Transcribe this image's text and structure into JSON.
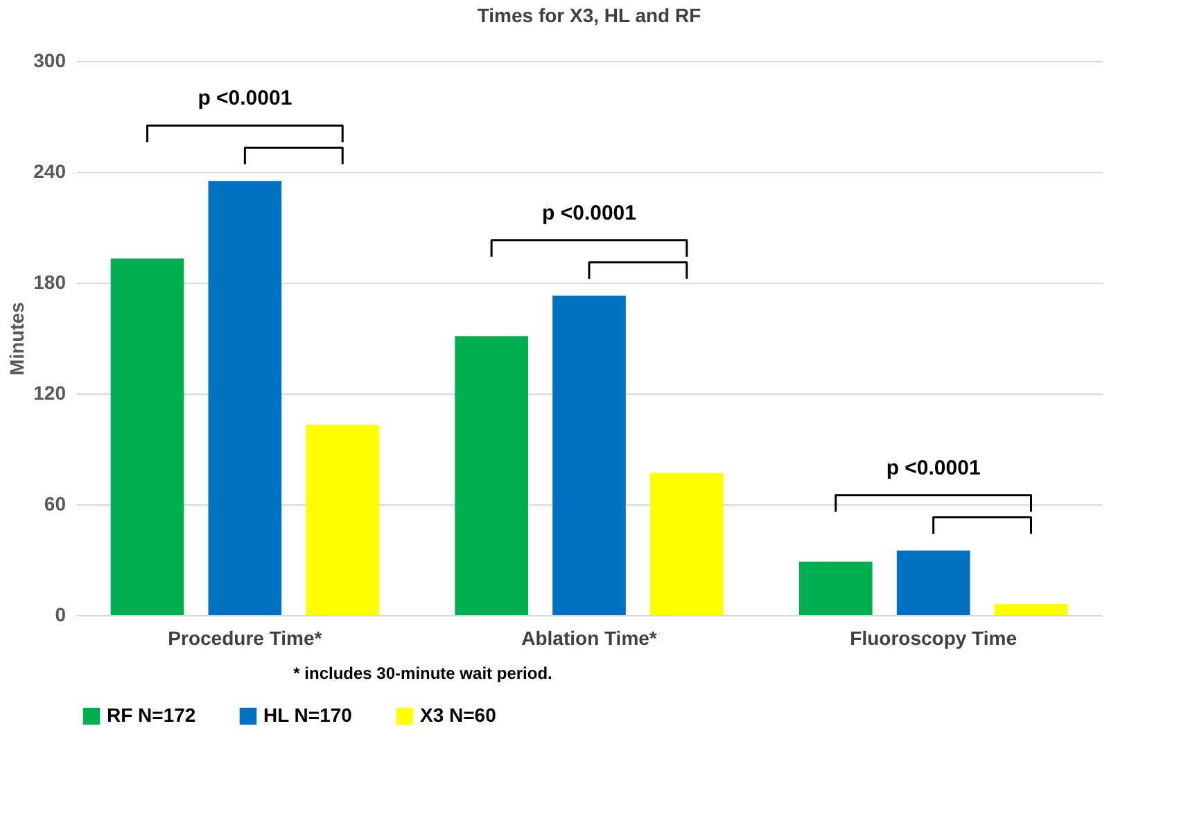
{
  "chart_data": {
    "type": "bar",
    "title": "Times for X3, HL and RF",
    "ylabel": "Minutes",
    "categories": [
      "Procedure Time*",
      "Ablation Time*",
      "Fluoroscopy Time"
    ],
    "series": [
      {
        "name": "RF N=172",
        "color": "#00b050",
        "values": [
          193,
          151,
          29
        ]
      },
      {
        "name": "HL N=170",
        "color": "#0070c0",
        "values": [
          235,
          173,
          35
        ]
      },
      {
        "name": "X3 N=60",
        "color": "#ffff00",
        "values": [
          103,
          77,
          6
        ]
      }
    ],
    "ylim": [
      0,
      300
    ],
    "yticks": [
      0,
      60,
      120,
      180,
      240,
      300
    ],
    "grid": "y",
    "legend": "bottom",
    "annotations": [
      "p <0.0001",
      "p <0.0001",
      "p <0.0001",
      "* includes 30-minute wait period."
    ]
  }
}
